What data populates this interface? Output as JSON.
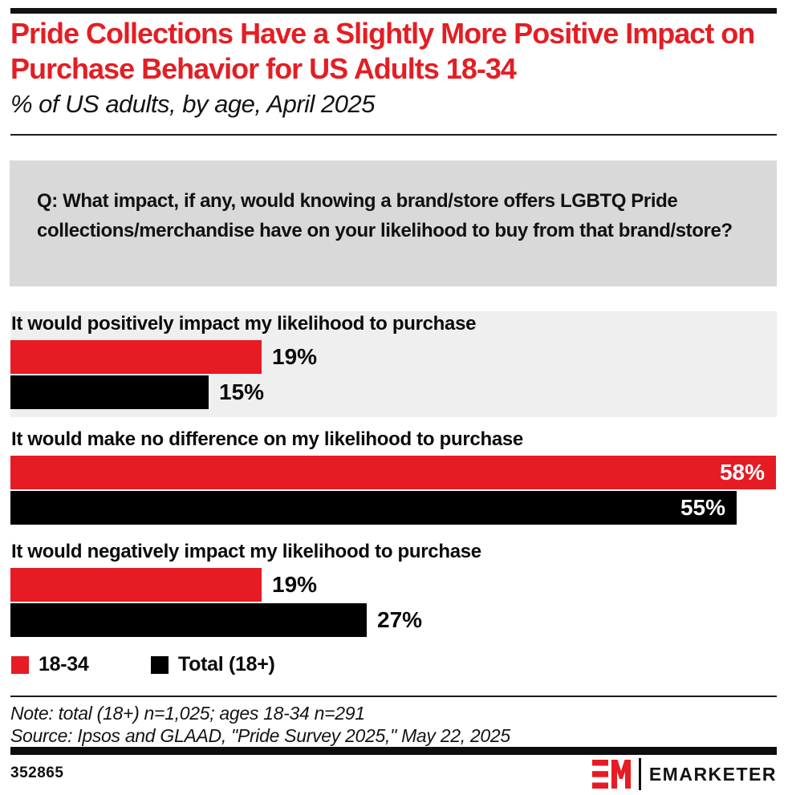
{
  "page": {
    "title": "Pride Collections Have a Slightly More Positive Impact on Purchase Behavior for US Adults 18-34",
    "subtitle": "% of US adults, by age, April 2025"
  },
  "question_box": {
    "text": "Q: What impact, if any, would knowing a brand/store offers LGBTQ Pride collections/merchandise have on your likelihood to buy from that brand/store?"
  },
  "chart_data": {
    "type": "bar",
    "orientation": "horizontal",
    "title": "Pride Collections Have a Slightly More Positive Impact on Purchase Behavior for US Adults 18-34",
    "subtitle": "% of US adults, by age, April 2025",
    "unit": "%",
    "categories": [
      "It would positively impact my likelihood to purchase",
      "It would make no difference on my likelihood to purchase",
      "It would negatively impact my likelihood to purchase"
    ],
    "series": [
      {
        "name": "18-34",
        "color": "#e61b23",
        "values": [
          19,
          58,
          19
        ]
      },
      {
        "name": "Total (18+)",
        "color": "#000000",
        "values": [
          15,
          55,
          27
        ]
      }
    ],
    "xlim": [
      0,
      58
    ],
    "grid": false,
    "legend_position": "bottom",
    "value_labels": true,
    "row_highlight": {
      "category_index": 0,
      "color": "#efefef"
    }
  },
  "legend": {
    "items": [
      {
        "label": "18-34",
        "color": "#e61b23"
      },
      {
        "label": "Total (18+)",
        "color": "#000000"
      }
    ]
  },
  "footer": {
    "note": "Note: total (18+) n=1,025; ages 18-34 n=291",
    "source": "Source: Ipsos and GLAAD, \"Pride Survey 2025,\" May 22, 2025",
    "chart_id": "352865",
    "brand_name": "EMARKETER"
  },
  "colors": {
    "accent_red": "#e61b23",
    "title_red": "#e31e24",
    "bar_black": "#000000",
    "question_box_bg": "#d9d9d9",
    "row_highlight_bg": "#efefef",
    "rule_black": "#111111"
  }
}
